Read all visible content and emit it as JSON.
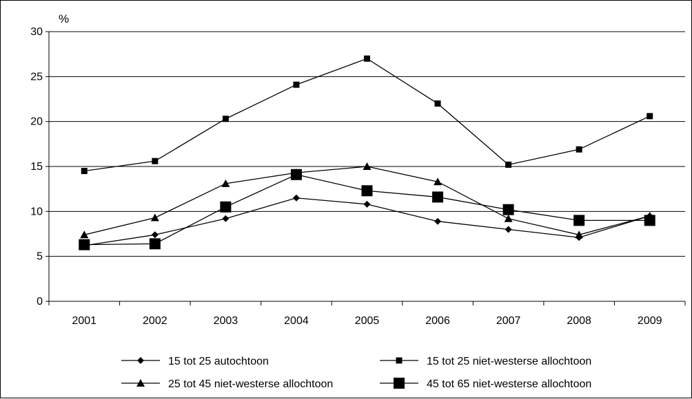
{
  "chart_data": {
    "type": "line",
    "title": "",
    "xlabel": "",
    "ylabel": "%",
    "ylim": [
      0,
      30
    ],
    "yticks": [
      0,
      5,
      10,
      15,
      20,
      25,
      30
    ],
    "grid": true,
    "legend_position": "bottom",
    "categories": [
      "2001",
      "2002",
      "2003",
      "2004",
      "2005",
      "2006",
      "2007",
      "2008",
      "2009"
    ],
    "series": [
      {
        "name": "15 tot 25 autochtoon",
        "marker": "diamond",
        "values": [
          6.2,
          7.4,
          9.2,
          11.5,
          10.8,
          8.9,
          8.0,
          7.1,
          9.5
        ]
      },
      {
        "name": "15 tot 25 niet-westerse allochtoon",
        "marker": "square",
        "values": [
          14.5,
          15.6,
          20.3,
          24.1,
          27.0,
          22.0,
          15.2,
          16.9,
          20.6
        ]
      },
      {
        "name": "25 tot 45 niet-westerse allochtoon",
        "marker": "triangle",
        "values": [
          7.4,
          9.3,
          13.1,
          14.3,
          15.0,
          13.3,
          9.2,
          7.4,
          9.5
        ]
      },
      {
        "name": "45 tot 65 niet-westerse allochtoon",
        "marker": "big-square",
        "values": [
          6.3,
          6.4,
          10.5,
          14.1,
          12.3,
          11.6,
          10.2,
          9.0,
          9.0
        ]
      }
    ]
  }
}
